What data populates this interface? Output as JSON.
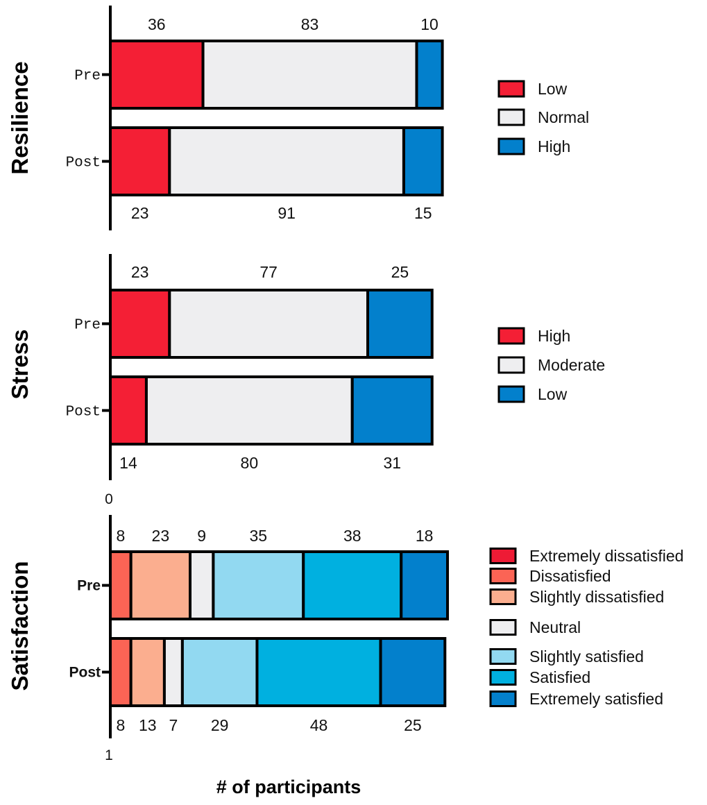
{
  "chart_data": [
    {
      "type": "bar",
      "orientation": "horizontal-stacked",
      "title": "Resilience",
      "categories": [
        "Pre",
        "Post"
      ],
      "series": [
        {
          "name": "Low",
          "color": "#f41f35",
          "values": [
            36,
            23
          ]
        },
        {
          "name": "Normal",
          "color": "#eeeef0",
          "values": [
            83,
            91
          ]
        },
        {
          "name": "High",
          "color": "#0380cc",
          "values": [
            10,
            15
          ]
        }
      ],
      "legend_placement": "right"
    },
    {
      "type": "bar",
      "orientation": "horizontal-stacked",
      "title": "Stress",
      "categories": [
        "Pre",
        "Post"
      ],
      "series": [
        {
          "name": "High",
          "color": "#f41f35",
          "values": [
            23,
            14
          ]
        },
        {
          "name": "Moderate",
          "color": "#eeeef0",
          "values": [
            77,
            80
          ]
        },
        {
          "name": "Low",
          "color": "#0380cc",
          "values": [
            25,
            31
          ]
        }
      ],
      "xtick": "0",
      "legend_placement": "right"
    },
    {
      "type": "bar",
      "orientation": "horizontal-stacked",
      "title": "Satisfaction",
      "categories": [
        "Pre",
        "Post"
      ],
      "series": [
        {
          "name": "Extremely dissatisfied",
          "color": "#ee1b35",
          "values": [
            0,
            0
          ]
        },
        {
          "name": "Dissatisfied",
          "color": "#fb6455",
          "values": [
            8,
            8
          ]
        },
        {
          "name": "Slightly dissatisfied",
          "color": "#fbae8f",
          "values": [
            23,
            13
          ]
        },
        {
          "name": "Neutral",
          "color": "#eeeef0",
          "values": [
            9,
            7
          ]
        },
        {
          "name": "Slightly satisfied",
          "color": "#92d9f1",
          "values": [
            35,
            29
          ]
        },
        {
          "name": "Satisfied",
          "color": "#00b0e0",
          "values": [
            38,
            48
          ]
        },
        {
          "name": "Extremely satisfied",
          "color": "#0380cc",
          "values": [
            18,
            25
          ]
        }
      ],
      "xtick": "1",
      "legend_placement": "right"
    }
  ],
  "xlabel": "# of participants"
}
